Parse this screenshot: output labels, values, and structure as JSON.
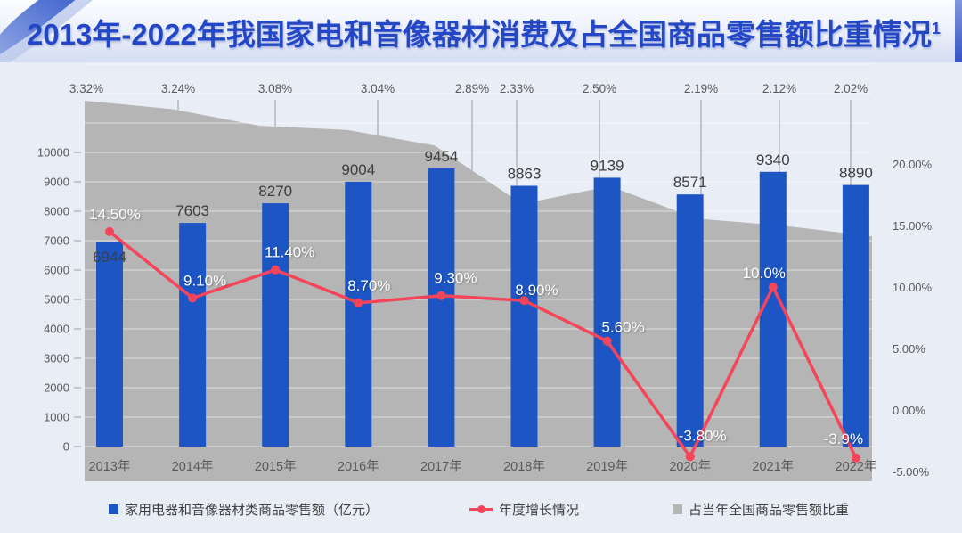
{
  "title": {
    "text": "2013年-2022年我国家电和音像器材消费及占全国商品零售额比重情况",
    "superscript": "1"
  },
  "chart_data": {
    "type": "combo-bar-line-area",
    "categories": [
      "2013年",
      "2014年",
      "2015年",
      "2016年",
      "2017年",
      "2018年",
      "2019年",
      "2020年",
      "2021年",
      "2022年"
    ],
    "series": [
      {
        "name": "家用电器和音像器材类商品零售额（亿元）",
        "type": "bar",
        "color": "#1d56c4",
        "axis": "left",
        "values": [
          6944,
          7603,
          8270,
          9004,
          9454,
          8863,
          9139,
          8571,
          9340,
          8890
        ],
        "labels": [
          "6944",
          "7603",
          "8270",
          "9004",
          "9454",
          "8863",
          "9139",
          "8571",
          "9340",
          "8890"
        ]
      },
      {
        "name": "年度增长情况",
        "type": "line",
        "color": "#f4455a",
        "axis": "right",
        "values": [
          14.5,
          9.1,
          11.4,
          8.7,
          9.3,
          8.9,
          5.6,
          -3.8,
          10.0,
          -3.9
        ],
        "labels": [
          "14.50%",
          "9.10%",
          "11.40%",
          "8.70%",
          "9.30%",
          "8.90%",
          "5.60%",
          "-3.80%",
          "10.0%",
          "-3.9%"
        ]
      },
      {
        "name": "占当年全国商品零售额比重",
        "type": "area",
        "color": "#b5b5b5",
        "axis": "hidden",
        "values": [
          3.32,
          3.24,
          3.08,
          3.04,
          2.89,
          2.33,
          2.5,
          2.19,
          2.12,
          2.02
        ],
        "labels": [
          "3.32%",
          "3.24%",
          "3.08%",
          "3.04%",
          "2.89%",
          "2.33%",
          "2.50%",
          "2.19%",
          "2.12%",
          "2.02%"
        ]
      }
    ],
    "left_axis": {
      "min": 0,
      "max": 10000,
      "ticks": [
        "0",
        "1000",
        "2000",
        "3000",
        "4000",
        "5000",
        "6000",
        "7000",
        "8000",
        "9000",
        "10000"
      ],
      "tick_values": [
        0,
        1000,
        2000,
        3000,
        4000,
        5000,
        6000,
        7000,
        8000,
        9000,
        10000
      ]
    },
    "right_axis": {
      "min": -5,
      "max": 20,
      "ticks": [
        "-5.00%",
        "0.00%",
        "5.00%",
        "10.00%",
        "15.00%",
        "20.00%"
      ],
      "tick_values": [
        -5,
        0,
        5,
        10,
        15,
        20
      ]
    },
    "grid": true,
    "legend_position": "bottom"
  },
  "legend": {
    "items": [
      {
        "marker": "square",
        "color": "#1d56c4"
      },
      {
        "marker": "line-dot",
        "color": "#f4455a"
      },
      {
        "marker": "square",
        "color": "#b5b5b5"
      }
    ]
  },
  "colors": {
    "background": "#e9edf6",
    "title_text": "#2447c5",
    "bar": "#1d56c4",
    "line": "#f4455a",
    "area": "#b5b5b5",
    "axis_text": "#595959",
    "bar_label_text": "#3d3d3d",
    "line_label_text": "#ffffff"
  }
}
